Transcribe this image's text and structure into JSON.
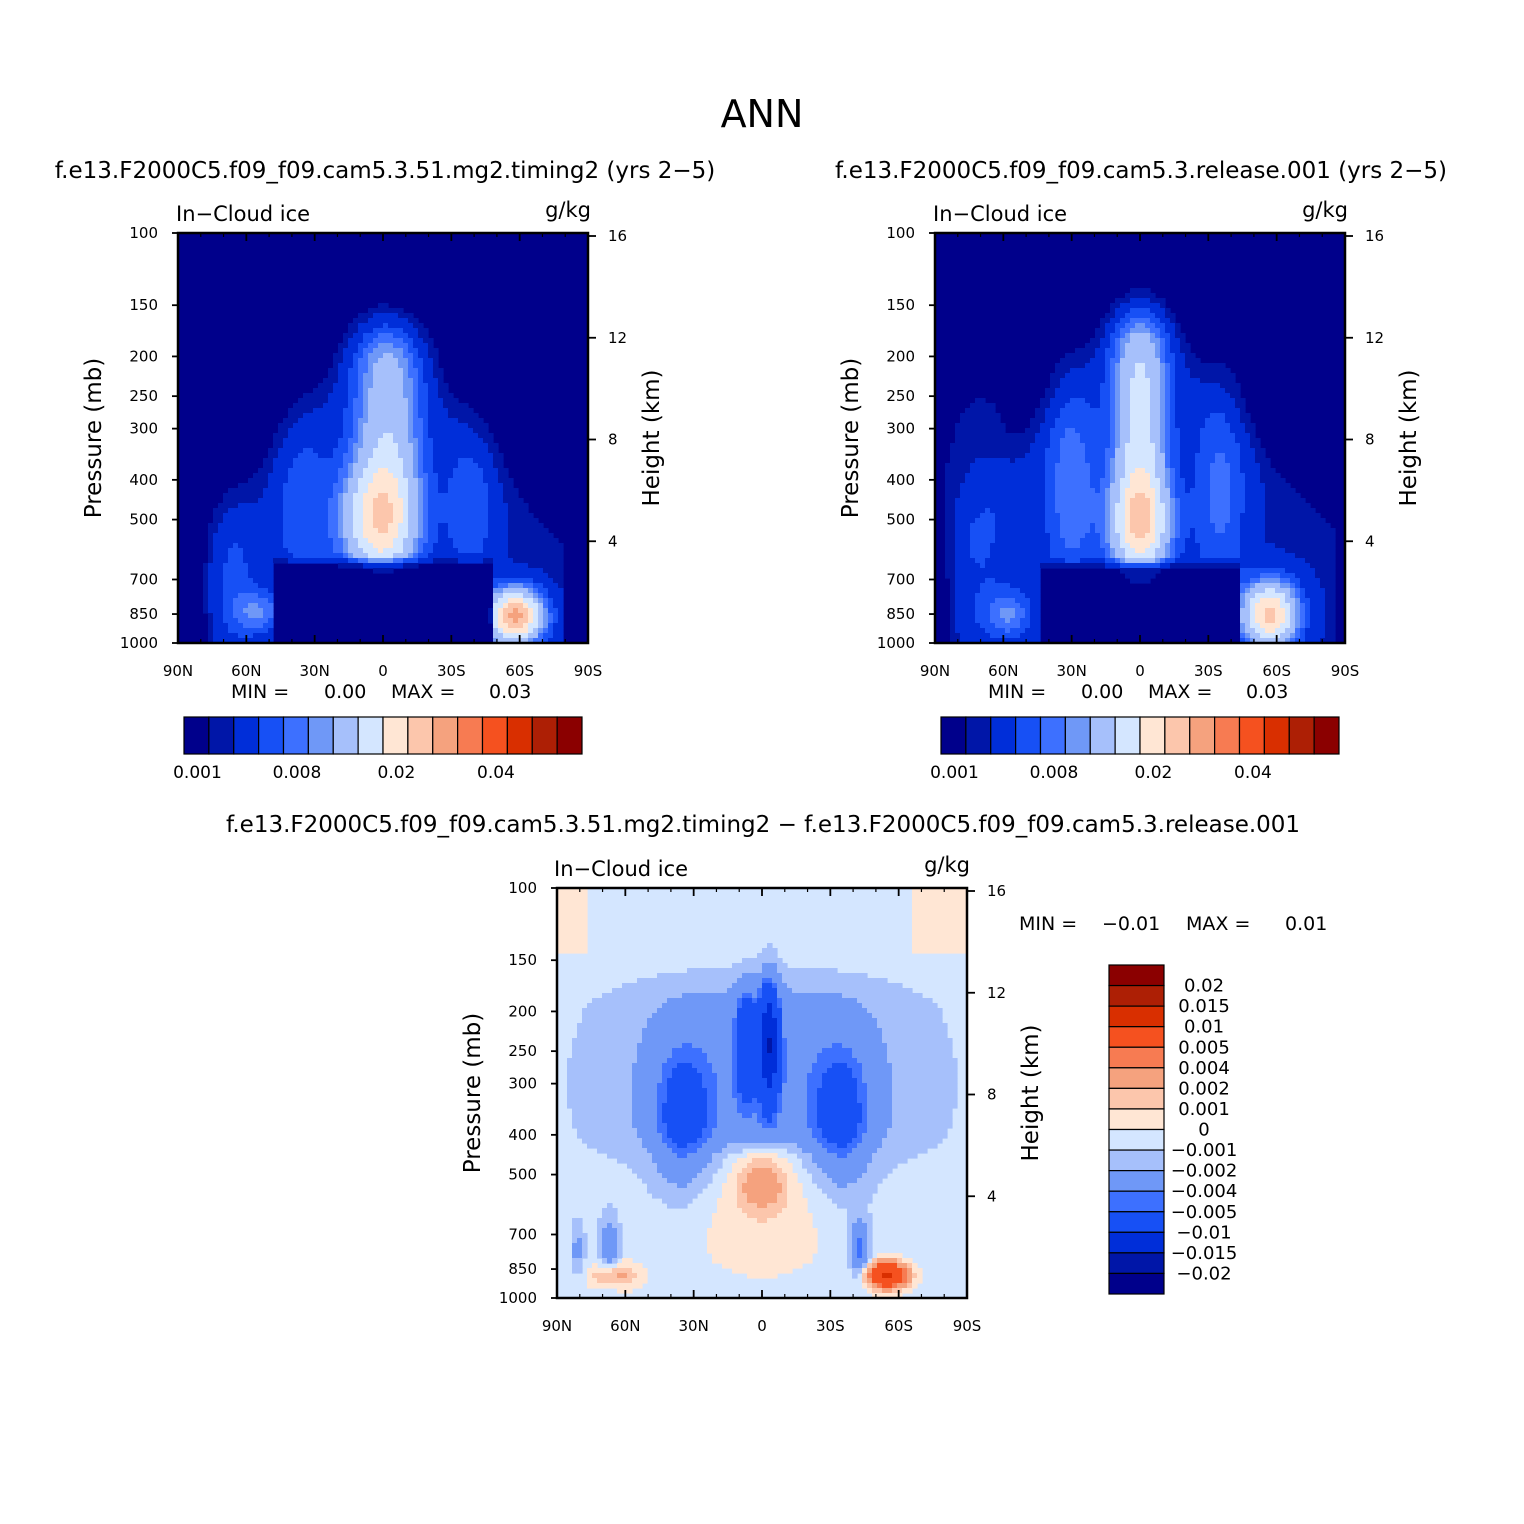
{
  "page": {
    "title": "ANN"
  },
  "colors": {
    "abs_levels": [
      "#00008b",
      "#0016a8",
      "#002ed9",
      "#1750f5",
      "#3d70ff",
      "#6f98f7",
      "#a6c0fb",
      "#d4e6ff",
      "#ffe6d4",
      "#fcc6ac",
      "#f5a27e",
      "#f77b52",
      "#f5511f",
      "#d92f00",
      "#ad1f05",
      "#8b0000"
    ],
    "diff_levels": [
      "#00008b",
      "#0016a8",
      "#002ed9",
      "#1750f5",
      "#3d70ff",
      "#6f98f7",
      "#a6c0fb",
      "#d4e6ff",
      "#ffe6d4",
      "#fcc6ac",
      "#f5a27e",
      "#f77b52",
      "#f5511f",
      "#d92f00",
      "#ad1f05",
      "#8b0000"
    ]
  },
  "chart_data": [
    {
      "id": "case",
      "type": "heatmap",
      "title": "f.e13.F2000C5.f09_f09.cam5.3.51.mg2.timing2 (yrs 2−5)",
      "left_label": "In−Cloud ice",
      "units": "g/kg",
      "ylabel": "Pressure (mb)",
      "ylabel_right": "Height (km)",
      "y_ticks": [
        "100",
        "150",
        "200",
        "250",
        "300",
        "400",
        "500",
        "700",
        "850",
        "1000"
      ],
      "y_ticks_right": [
        "16",
        "12",
        "8",
        "4"
      ],
      "x_ticks": [
        "90N",
        "60N",
        "30N",
        "0",
        "30S",
        "60S",
        "90S"
      ],
      "min_label": "MIN =",
      "min_value": "0.00",
      "max_label": "MAX =",
      "max_value": "0.03",
      "colorbar_labels": [
        "0.001",
        "0.008",
        "0.02",
        "0.04"
      ],
      "features": {
        "upper_core": 0.012,
        "upper_core_lat": -2,
        "upper_top_mb": 120,
        "mid_core": 0.018,
        "mid_core_lat": 2,
        "mid_core_mb": 500,
        "sh_peak": 0.03,
        "sh_peak_lat": -58,
        "sh_peak_mb": 860,
        "nh_low": 0.006,
        "nh_low_lat": 55,
        "nh_low_mb": 840
      }
    },
    {
      "id": "control",
      "type": "heatmap",
      "title": "f.e13.F2000C5.f09_f09.cam5.3.release.001 (yrs 2−5)",
      "left_label": "In−Cloud ice",
      "units": "g/kg",
      "ylabel": "Pressure (mb)",
      "ylabel_right": "Height (km)",
      "y_ticks": [
        "100",
        "150",
        "200",
        "250",
        "300",
        "400",
        "500",
        "700",
        "850",
        "1000"
      ],
      "y_ticks_right": [
        "16",
        "12",
        "8",
        "4"
      ],
      "x_ticks": [
        "90N",
        "60N",
        "30N",
        "0",
        "30S",
        "60S",
        "90S"
      ],
      "min_label": "MIN =",
      "min_value": "0.00",
      "max_label": "MAX =",
      "max_value": "0.03",
      "colorbar_labels": [
        "0.001",
        "0.008",
        "0.02",
        "0.04"
      ],
      "features": {
        "upper_core": 0.016,
        "upper_core_lat": 0,
        "upper_top_mb": 110,
        "mid_core": 0.016,
        "mid_core_lat": 0,
        "mid_core_mb": 510,
        "sh_peak": 0.025,
        "sh_peak_lat": -57,
        "sh_peak_mb": 850,
        "nh_low": 0.006,
        "nh_low_lat": 58,
        "nh_low_mb": 850
      }
    },
    {
      "id": "diff",
      "type": "heatmap",
      "title": "f.e13.F2000C5.f09_f09.cam5.3.51.mg2.timing2 − f.e13.F2000C5.f09_f09.cam5.3.release.001",
      "left_label": "In−Cloud ice",
      "units": "g/kg",
      "ylabel": "Pressure (mb)",
      "ylabel_right": "Height (km)",
      "y_ticks": [
        "100",
        "150",
        "200",
        "250",
        "300",
        "400",
        "500",
        "700",
        "850",
        "1000"
      ],
      "y_ticks_right": [
        "16",
        "12",
        "8",
        "4"
      ],
      "x_ticks": [
        "90N",
        "60N",
        "30N",
        "0",
        "30S",
        "60S",
        "90S"
      ],
      "min_label": "MIN =",
      "min_value": "−0.01",
      "max_label": "MAX =",
      "max_value": "0.01",
      "colorbar_labels": [
        "0.02",
        "0.015",
        "0.01",
        "0.005",
        "0.004",
        "0.002",
        "0.001",
        "0",
        "−0.001",
        "−0.002",
        "−0.004",
        "−0.005",
        "−0.01",
        "−0.015",
        "−0.02"
      ]
    }
  ]
}
